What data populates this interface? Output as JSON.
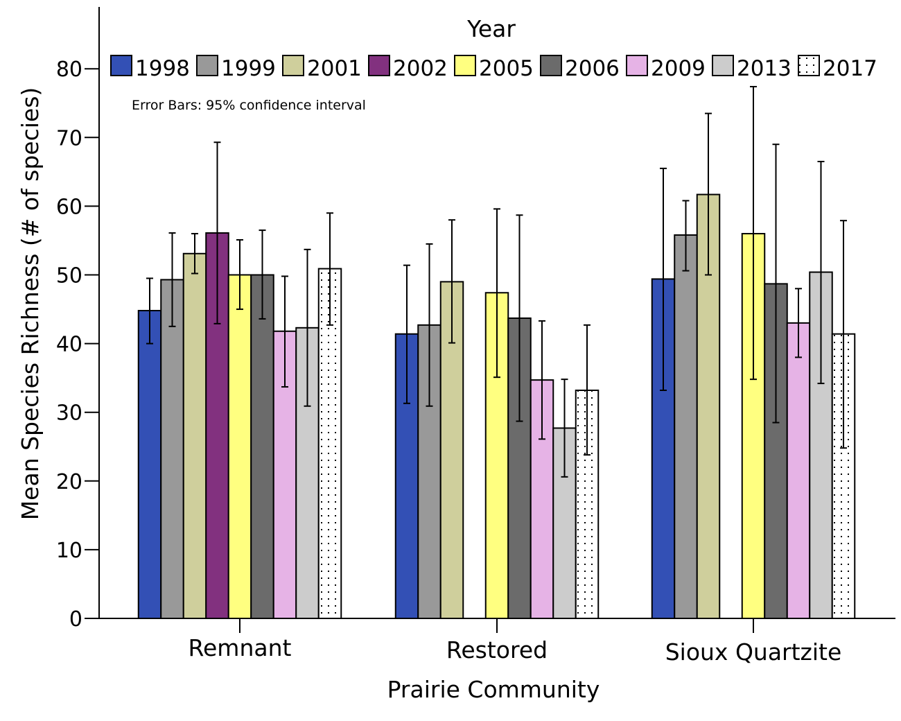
{
  "chart_data": {
    "type": "bar",
    "title": "",
    "xlabel": "Prairie Community",
    "ylabel": "Mean Species Richness (# of species)",
    "ylim": [
      0,
      88
    ],
    "yticks": [
      0,
      10,
      20,
      30,
      40,
      50,
      60,
      70,
      80
    ],
    "grid": false,
    "legend": {
      "title": "Year",
      "placement": "top"
    },
    "note": "Error Bars: 95% confidence interval",
    "categories": [
      "Remnant",
      "Restored",
      "Sioux Quartzite"
    ],
    "series": [
      {
        "name": "1998",
        "color": "#3350b5",
        "pattern": "solid",
        "values": [
          44.8,
          41.4,
          49.4
        ],
        "ci_low": [
          40.0,
          31.3,
          33.2
        ],
        "ci_high": [
          49.5,
          51.4,
          65.5
        ]
      },
      {
        "name": "1999",
        "color": "#999999",
        "pattern": "solid",
        "values": [
          49.3,
          42.7,
          55.8
        ],
        "ci_low": [
          42.5,
          30.9,
          50.6
        ],
        "ci_high": [
          56.1,
          54.5,
          60.8
        ]
      },
      {
        "name": "2001",
        "color": "#cfcf9c",
        "pattern": "solid",
        "values": [
          53.1,
          49.0,
          61.7
        ],
        "ci_low": [
          50.2,
          40.1,
          50.0
        ],
        "ci_high": [
          56.0,
          58.0,
          73.5
        ]
      },
      {
        "name": "2002",
        "color": "#82317f",
        "pattern": "solid",
        "values": [
          56.1,
          null,
          null
        ],
        "ci_low": [
          42.9,
          null,
          null
        ],
        "ci_high": [
          69.3,
          null,
          null
        ]
      },
      {
        "name": "2005",
        "color": "#ffff80",
        "pattern": "solid",
        "values": [
          50.0,
          47.4,
          56.0
        ],
        "ci_low": [
          45.0,
          35.1,
          34.8
        ],
        "ci_high": [
          55.1,
          59.6,
          77.4
        ]
      },
      {
        "name": "2006",
        "color": "#6b6b6b",
        "pattern": "solid",
        "values": [
          50.0,
          43.7,
          48.7
        ],
        "ci_low": [
          43.6,
          28.7,
          28.5
        ],
        "ci_high": [
          56.5,
          58.7,
          69.0
        ]
      },
      {
        "name": "2009",
        "color": "#e6b3e6",
        "pattern": "solid",
        "values": [
          41.8,
          34.7,
          43.0
        ],
        "ci_low": [
          33.7,
          26.1,
          38.0
        ],
        "ci_high": [
          49.8,
          43.3,
          48.0
        ]
      },
      {
        "name": "2013",
        "color": "#cccccc",
        "pattern": "solid",
        "values": [
          42.3,
          27.7,
          50.4
        ],
        "ci_low": [
          30.9,
          20.6,
          34.2
        ],
        "ci_high": [
          53.7,
          34.8,
          66.5
        ]
      },
      {
        "name": "2017",
        "color": "#ffffff",
        "pattern": "dotted",
        "values": [
          50.9,
          33.2,
          41.4
        ],
        "ci_low": [
          42.7,
          23.8,
          24.8
        ],
        "ci_high": [
          59.0,
          42.7,
          57.9
        ]
      }
    ]
  }
}
